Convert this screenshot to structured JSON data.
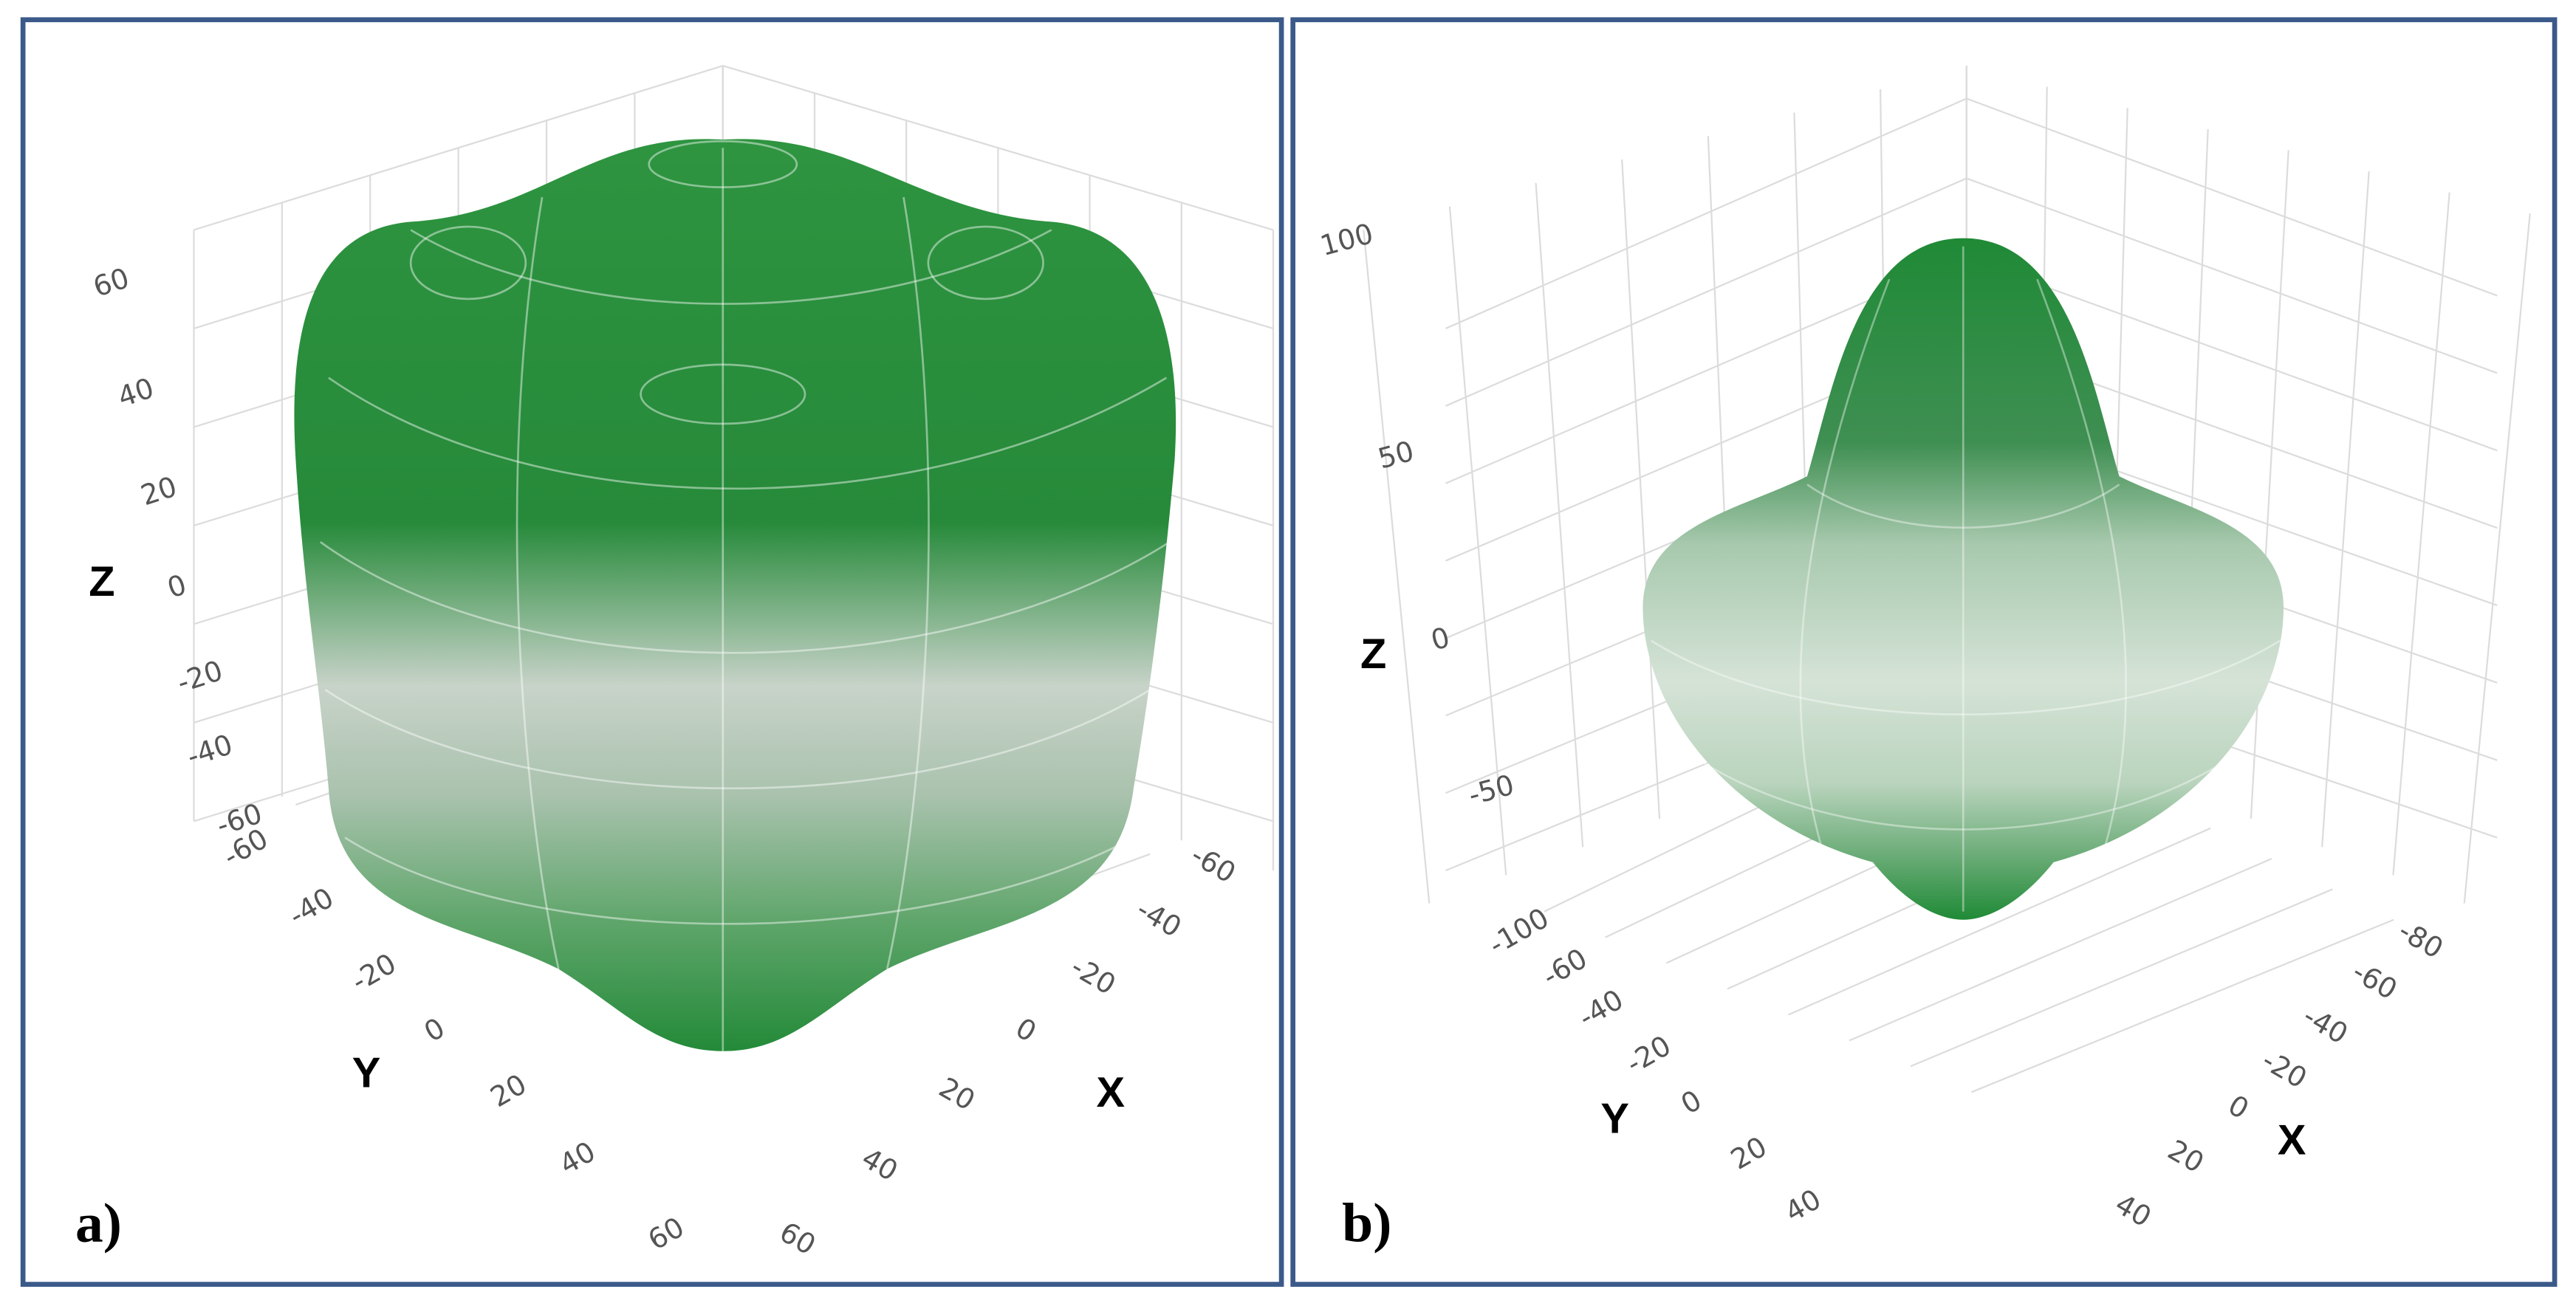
{
  "panels": [
    {
      "label": "a)",
      "axes": {
        "x": {
          "title": "X",
          "ticks": [
            -60,
            -40,
            -20,
            0,
            20,
            40,
            60
          ]
        },
        "y": {
          "title": "Y",
          "ticks": [
            -60,
            -40,
            -20,
            0,
            20,
            40,
            60
          ]
        },
        "z": {
          "title": "Z",
          "ticks": [
            60,
            40,
            20,
            0,
            -20,
            -40,
            -60
          ]
        }
      }
    },
    {
      "label": "b)",
      "axes": {
        "x": {
          "title": "X",
          "ticks": [
            -80,
            -60,
            -40,
            -20,
            0,
            20,
            40
          ]
        },
        "y": {
          "title": "Y",
          "ticks": [
            -100,
            -60,
            -40,
            -20,
            0,
            20,
            40
          ]
        },
        "z": {
          "title": "Z",
          "ticks": [
            100,
            50,
            0,
            -50
          ]
        }
      }
    }
  ]
}
